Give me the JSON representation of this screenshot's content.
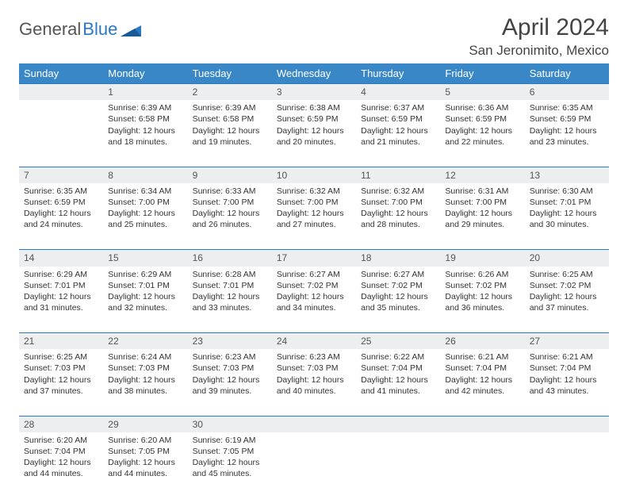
{
  "logo": {
    "text_gray": "General",
    "text_blue": "Blue"
  },
  "header": {
    "month": "April 2024",
    "location": "San Jeronimito, Mexico"
  },
  "colors": {
    "header_bg": "#3a87c8",
    "header_text": "#ffffff",
    "daynum_bg": "#eceeef",
    "row_border": "#2b78c4",
    "title_color": "#444444",
    "body_text": "#333333"
  },
  "weekdays": [
    "Sunday",
    "Monday",
    "Tuesday",
    "Wednesday",
    "Thursday",
    "Friday",
    "Saturday"
  ],
  "weeks": [
    {
      "nums": [
        "",
        "1",
        "2",
        "3",
        "4",
        "5",
        "6"
      ],
      "cells": [
        null,
        {
          "sr": "Sunrise: 6:39 AM",
          "ss": "Sunset: 6:58 PM",
          "d1": "Daylight: 12 hours",
          "d2": "and 18 minutes."
        },
        {
          "sr": "Sunrise: 6:39 AM",
          "ss": "Sunset: 6:58 PM",
          "d1": "Daylight: 12 hours",
          "d2": "and 19 minutes."
        },
        {
          "sr": "Sunrise: 6:38 AM",
          "ss": "Sunset: 6:59 PM",
          "d1": "Daylight: 12 hours",
          "d2": "and 20 minutes."
        },
        {
          "sr": "Sunrise: 6:37 AM",
          "ss": "Sunset: 6:59 PM",
          "d1": "Daylight: 12 hours",
          "d2": "and 21 minutes."
        },
        {
          "sr": "Sunrise: 6:36 AM",
          "ss": "Sunset: 6:59 PM",
          "d1": "Daylight: 12 hours",
          "d2": "and 22 minutes."
        },
        {
          "sr": "Sunrise: 6:35 AM",
          "ss": "Sunset: 6:59 PM",
          "d1": "Daylight: 12 hours",
          "d2": "and 23 minutes."
        }
      ]
    },
    {
      "nums": [
        "7",
        "8",
        "9",
        "10",
        "11",
        "12",
        "13"
      ],
      "cells": [
        {
          "sr": "Sunrise: 6:35 AM",
          "ss": "Sunset: 6:59 PM",
          "d1": "Daylight: 12 hours",
          "d2": "and 24 minutes."
        },
        {
          "sr": "Sunrise: 6:34 AM",
          "ss": "Sunset: 7:00 PM",
          "d1": "Daylight: 12 hours",
          "d2": "and 25 minutes."
        },
        {
          "sr": "Sunrise: 6:33 AM",
          "ss": "Sunset: 7:00 PM",
          "d1": "Daylight: 12 hours",
          "d2": "and 26 minutes."
        },
        {
          "sr": "Sunrise: 6:32 AM",
          "ss": "Sunset: 7:00 PM",
          "d1": "Daylight: 12 hours",
          "d2": "and 27 minutes."
        },
        {
          "sr": "Sunrise: 6:32 AM",
          "ss": "Sunset: 7:00 PM",
          "d1": "Daylight: 12 hours",
          "d2": "and 28 minutes."
        },
        {
          "sr": "Sunrise: 6:31 AM",
          "ss": "Sunset: 7:00 PM",
          "d1": "Daylight: 12 hours",
          "d2": "and 29 minutes."
        },
        {
          "sr": "Sunrise: 6:30 AM",
          "ss": "Sunset: 7:01 PM",
          "d1": "Daylight: 12 hours",
          "d2": "and 30 minutes."
        }
      ]
    },
    {
      "nums": [
        "14",
        "15",
        "16",
        "17",
        "18",
        "19",
        "20"
      ],
      "cells": [
        {
          "sr": "Sunrise: 6:29 AM",
          "ss": "Sunset: 7:01 PM",
          "d1": "Daylight: 12 hours",
          "d2": "and 31 minutes."
        },
        {
          "sr": "Sunrise: 6:29 AM",
          "ss": "Sunset: 7:01 PM",
          "d1": "Daylight: 12 hours",
          "d2": "and 32 minutes."
        },
        {
          "sr": "Sunrise: 6:28 AM",
          "ss": "Sunset: 7:01 PM",
          "d1": "Daylight: 12 hours",
          "d2": "and 33 minutes."
        },
        {
          "sr": "Sunrise: 6:27 AM",
          "ss": "Sunset: 7:02 PM",
          "d1": "Daylight: 12 hours",
          "d2": "and 34 minutes."
        },
        {
          "sr": "Sunrise: 6:27 AM",
          "ss": "Sunset: 7:02 PM",
          "d1": "Daylight: 12 hours",
          "d2": "and 35 minutes."
        },
        {
          "sr": "Sunrise: 6:26 AM",
          "ss": "Sunset: 7:02 PM",
          "d1": "Daylight: 12 hours",
          "d2": "and 36 minutes."
        },
        {
          "sr": "Sunrise: 6:25 AM",
          "ss": "Sunset: 7:02 PM",
          "d1": "Daylight: 12 hours",
          "d2": "and 37 minutes."
        }
      ]
    },
    {
      "nums": [
        "21",
        "22",
        "23",
        "24",
        "25",
        "26",
        "27"
      ],
      "cells": [
        {
          "sr": "Sunrise: 6:25 AM",
          "ss": "Sunset: 7:03 PM",
          "d1": "Daylight: 12 hours",
          "d2": "and 37 minutes."
        },
        {
          "sr": "Sunrise: 6:24 AM",
          "ss": "Sunset: 7:03 PM",
          "d1": "Daylight: 12 hours",
          "d2": "and 38 minutes."
        },
        {
          "sr": "Sunrise: 6:23 AM",
          "ss": "Sunset: 7:03 PM",
          "d1": "Daylight: 12 hours",
          "d2": "and 39 minutes."
        },
        {
          "sr": "Sunrise: 6:23 AM",
          "ss": "Sunset: 7:03 PM",
          "d1": "Daylight: 12 hours",
          "d2": "and 40 minutes."
        },
        {
          "sr": "Sunrise: 6:22 AM",
          "ss": "Sunset: 7:04 PM",
          "d1": "Daylight: 12 hours",
          "d2": "and 41 minutes."
        },
        {
          "sr": "Sunrise: 6:21 AM",
          "ss": "Sunset: 7:04 PM",
          "d1": "Daylight: 12 hours",
          "d2": "and 42 minutes."
        },
        {
          "sr": "Sunrise: 6:21 AM",
          "ss": "Sunset: 7:04 PM",
          "d1": "Daylight: 12 hours",
          "d2": "and 43 minutes."
        }
      ]
    },
    {
      "nums": [
        "28",
        "29",
        "30",
        "",
        "",
        "",
        ""
      ],
      "cells": [
        {
          "sr": "Sunrise: 6:20 AM",
          "ss": "Sunset: 7:04 PM",
          "d1": "Daylight: 12 hours",
          "d2": "and 44 minutes."
        },
        {
          "sr": "Sunrise: 6:20 AM",
          "ss": "Sunset: 7:05 PM",
          "d1": "Daylight: 12 hours",
          "d2": "and 44 minutes."
        },
        {
          "sr": "Sunrise: 6:19 AM",
          "ss": "Sunset: 7:05 PM",
          "d1": "Daylight: 12 hours",
          "d2": "and 45 minutes."
        },
        null,
        null,
        null,
        null
      ]
    }
  ]
}
